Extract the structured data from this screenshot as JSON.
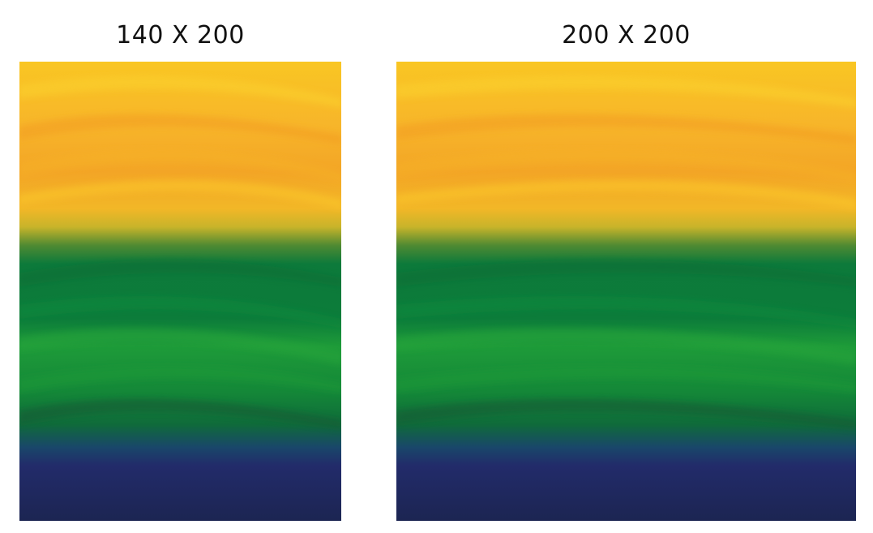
{
  "panels": [
    {
      "label": "140 X 200"
    },
    {
      "label": "200 X 200"
    }
  ],
  "colors": {
    "yellow": "#f9c623",
    "orange": "#f3a526",
    "olive": "#7f8a2a",
    "dark_green": "#0b7a3b",
    "green": "#1f9e3a",
    "teal": "#1b5a48",
    "navy": "#222b6a",
    "dark_navy": "#1c2552"
  }
}
